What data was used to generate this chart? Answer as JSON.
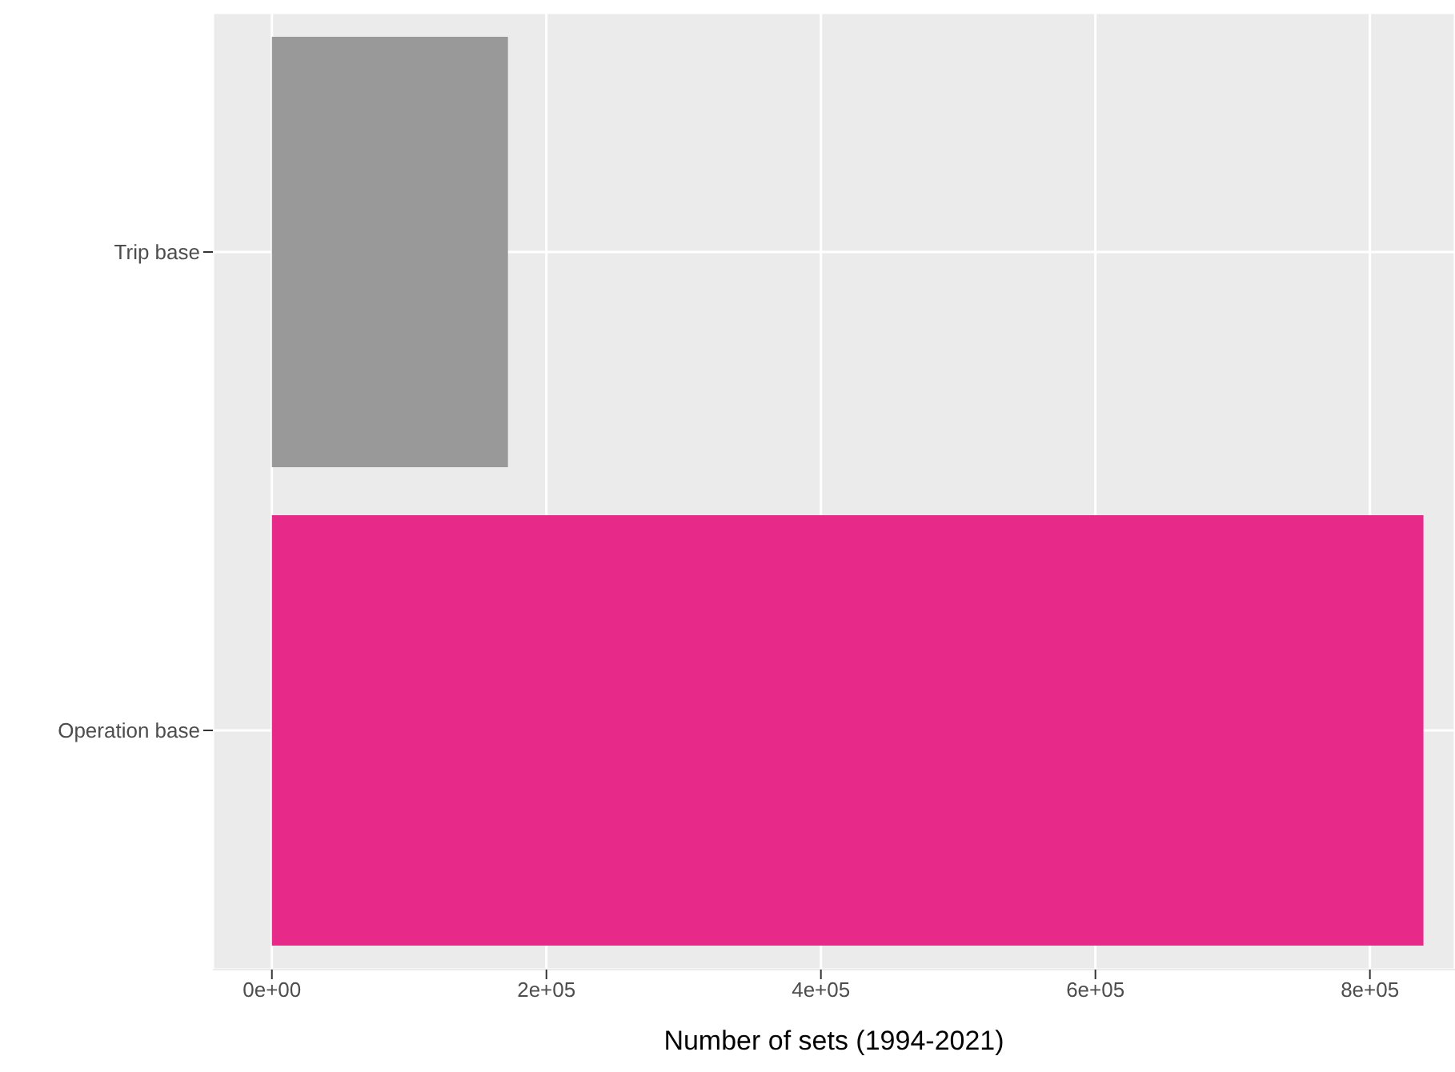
{
  "chart_data": {
    "type": "bar",
    "orientation": "horizontal",
    "xlabel": "Number of sets (1994-2021)",
    "categories": [
      "Trip base",
      "Operation base"
    ],
    "values": [
      172000,
      839000
    ],
    "colors": [
      "#999999",
      "#e7298a"
    ],
    "xlim": [
      -43000,
      862000
    ],
    "xticks": [
      {
        "value": 0,
        "label": "0e+00"
      },
      {
        "value": 200000,
        "label": "2e+05"
      },
      {
        "value": 400000,
        "label": "4e+05"
      },
      {
        "value": 600000,
        "label": "6e+05"
      },
      {
        "value": 800000,
        "label": "8e+05"
      }
    ],
    "grid": true
  }
}
